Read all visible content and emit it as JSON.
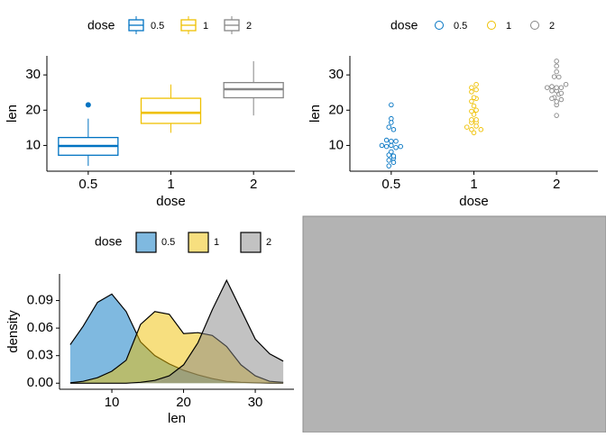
{
  "chart_data": [
    {
      "type": "box",
      "legend_title": "dose",
      "x_label": "dose",
      "y_label": "len",
      "categories": [
        "0.5",
        "1",
        "2"
      ],
      "colors": [
        "#0073C2",
        "#EFC000",
        "#868686"
      ],
      "boxes": [
        {
          "min": 4.2,
          "q1": 7.225,
          "median": 9.85,
          "q3": 12.25,
          "max": 17.6,
          "outliers": [
            21.5
          ]
        },
        {
          "min": 13.6,
          "q1": 16.25,
          "median": 19.25,
          "q3": 23.375,
          "max": 27.3,
          "outliers": []
        },
        {
          "min": 18.5,
          "q1": 23.525,
          "median": 25.95,
          "q3": 27.825,
          "max": 33.9,
          "outliers": []
        }
      ],
      "ylim": [
        2.7,
        35.4
      ],
      "yticks": [
        10,
        20,
        30
      ],
      "legend": "top"
    },
    {
      "type": "dotplot",
      "legend_title": "dose",
      "x_label": "dose",
      "y_label": "len",
      "categories": [
        "0.5",
        "1",
        "2"
      ],
      "colors": [
        "#0073C2",
        "#EFC000",
        "#868686"
      ],
      "groups": [
        [
          4.2,
          11.5,
          7.3,
          5.8,
          6.4,
          10,
          11.2,
          11.2,
          5.2,
          7,
          15.2,
          21.5,
          17.6,
          9.7,
          14.5,
          10,
          8.2,
          9.4,
          16.5,
          9.7
        ],
        [
          16.5,
          16.5,
          15.2,
          17.3,
          22.5,
          17.3,
          13.6,
          14.5,
          18.8,
          15.5,
          19.7,
          23.3,
          23.6,
          26.4,
          20,
          25.2,
          25.8,
          21.2,
          14.5,
          27.3
        ],
        [
          23.6,
          18.5,
          33.9,
          25.5,
          26.4,
          32.5,
          26.7,
          21.5,
          23.3,
          29.5,
          25.5,
          26.4,
          22.4,
          24.5,
          24.8,
          30.9,
          26.4,
          27.3,
          29.4,
          23
        ]
      ],
      "ylim": [
        2.7,
        35.4
      ],
      "yticks": [
        10,
        20,
        30
      ],
      "legend": "top"
    },
    {
      "type": "density",
      "legend_title": "dose",
      "x_label": "len",
      "y_label": "density",
      "x": [
        4.2,
        6,
        8,
        10,
        12,
        14,
        16,
        18,
        20,
        22,
        24,
        26,
        28,
        30,
        32,
        33.9
      ],
      "series": [
        {
          "name": "0.5",
          "color": "#0073C2",
          "values": [
            0.042,
            0.062,
            0.088,
            0.097,
            0.078,
            0.045,
            0.03,
            0.021,
            0.014,
            0.009,
            0.005,
            0.002,
            0.001,
            0.0005,
            0.0002,
            0.0001
          ]
        },
        {
          "name": "1",
          "color": "#EFC000",
          "values": [
            0.0005,
            0.002,
            0.006,
            0.013,
            0.025,
            0.064,
            0.078,
            0.075,
            0.054,
            0.055,
            0.052,
            0.04,
            0.02,
            0.008,
            0.002,
            0.001
          ]
        },
        {
          "name": "2",
          "color": "#868686",
          "values": [
            0,
            0,
            0,
            0,
            0,
            0.001,
            0.003,
            0.008,
            0.02,
            0.044,
            0.08,
            0.112,
            0.08,
            0.048,
            0.032,
            0.024
          ]
        }
      ],
      "xlim": [
        2.7,
        35.4
      ],
      "ylim": [
        -0.0066,
        0.119
      ],
      "xticks": [
        10,
        20,
        30
      ],
      "yticks": [
        {
          "value": 0,
          "label": "0.00"
        },
        {
          "value": 0.03,
          "label": "0.03"
        },
        {
          "value": 0.06,
          "label": "0.06"
        },
        {
          "value": 0.09,
          "label": "0.09"
        }
      ],
      "legend": "top"
    }
  ]
}
